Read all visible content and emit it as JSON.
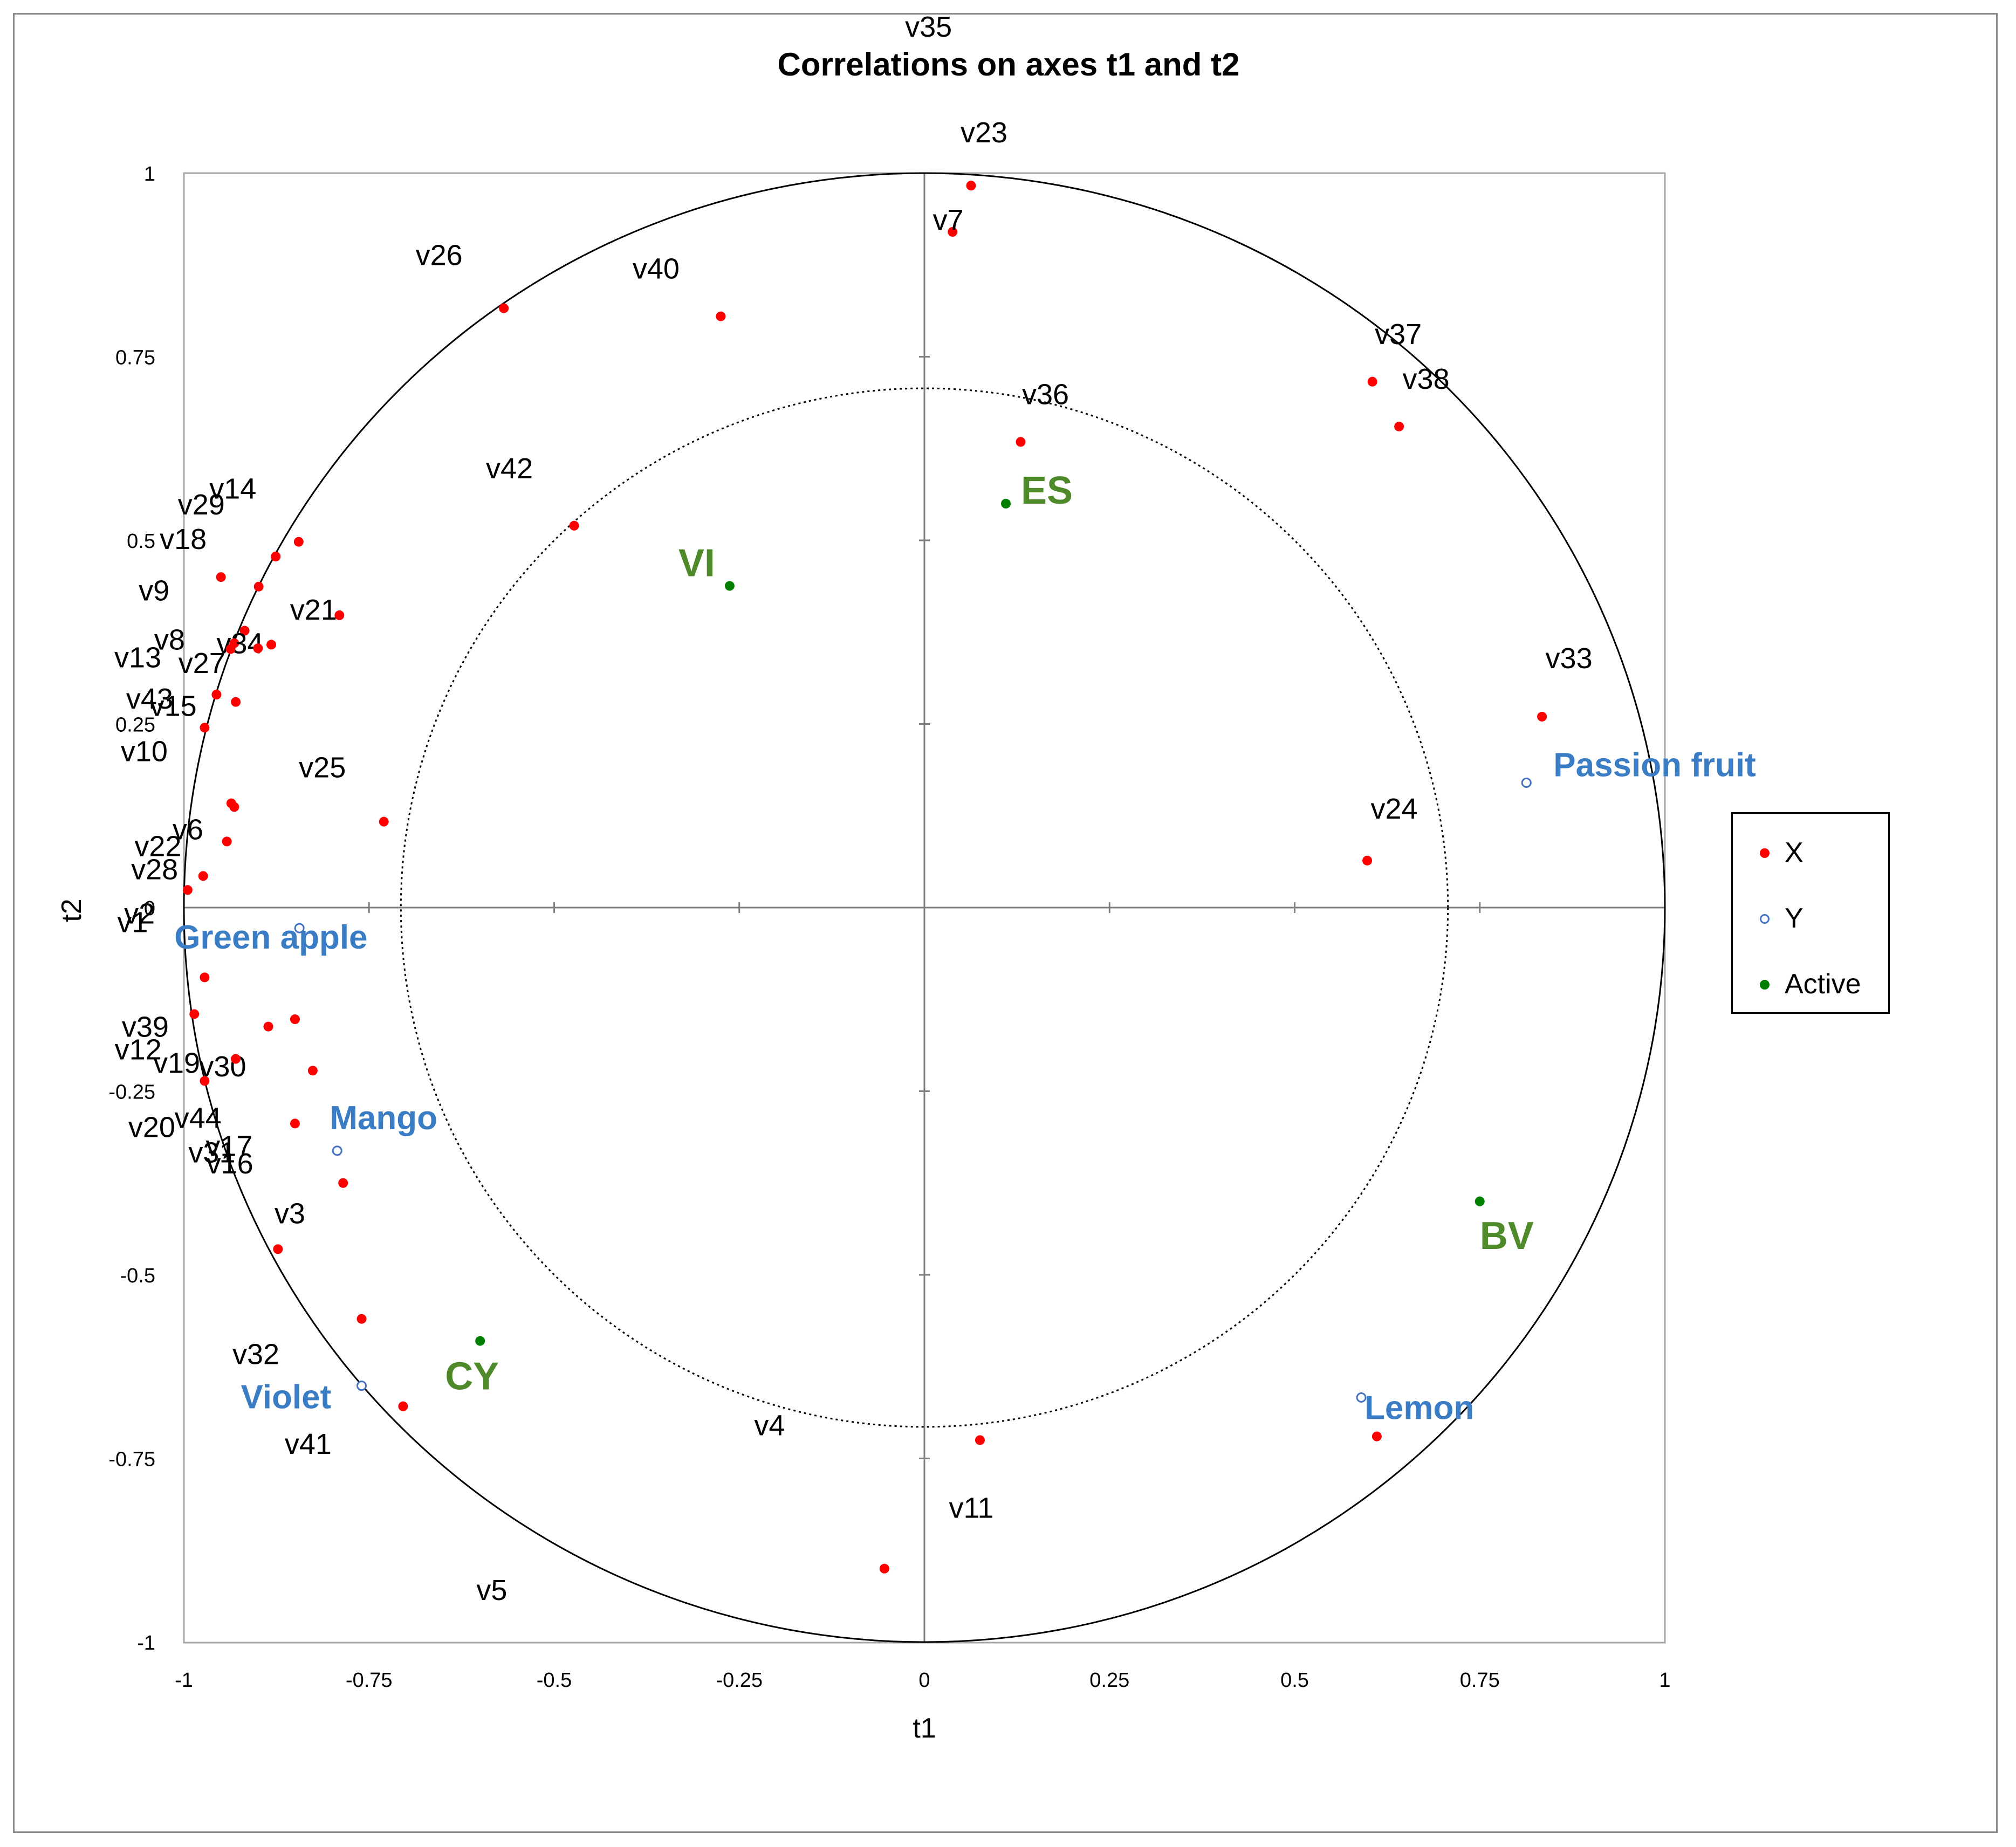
{
  "chart_data": {
    "type": "scatter",
    "title": "Correlations on axes t1 and t2",
    "xlabel": "t1",
    "ylabel": "t2",
    "xlim": [
      -1,
      1
    ],
    "ylim": [
      -1,
      1
    ],
    "x_ticks": [
      "-1",
      "-0.75",
      "-0.5",
      "-0.25",
      "0",
      "0.25",
      "0.5",
      "0.75",
      "1"
    ],
    "y_ticks": [
      "-1",
      "-0.75",
      "-0.5",
      "-0.25",
      "0",
      "0.25",
      "0.5",
      "0.75",
      "1"
    ],
    "circles": [
      {
        "radius": 1,
        "style": "solid"
      },
      {
        "radius": 0.707,
        "style": "dotted"
      }
    ],
    "legend": [
      "X",
      "Y",
      "Active"
    ],
    "colors": {
      "X": "#ff0000",
      "Y": "#4472c4",
      "Active": "#008000"
    },
    "series": [
      {
        "name": "X",
        "points": [
          {
            "label": "v23",
            "x": 0.063,
            "y": 0.983
          },
          {
            "label": "v7",
            "x": 0.038,
            "y": 0.92
          },
          {
            "label": "v26",
            "x": -0.568,
            "y": 0.816
          },
          {
            "label": "v40",
            "x": -0.275,
            "y": 0.805
          },
          {
            "label": "v37",
            "x": 0.605,
            "y": 0.716
          },
          {
            "label": "v38",
            "x": 0.641,
            "y": 0.655
          },
          {
            "label": "v36",
            "x": 0.13,
            "y": 0.634
          },
          {
            "label": "v42",
            "x": -0.473,
            "y": 0.52
          },
          {
            "label": "v14",
            "x": -0.845,
            "y": 0.498
          },
          {
            "label": "v29",
            "x": -0.876,
            "y": 0.478
          },
          {
            "label": "v18",
            "x": -0.899,
            "y": 0.437
          },
          {
            "label": "v21",
            "x": -0.79,
            "y": 0.398
          },
          {
            "label": "v9",
            "x": -0.918,
            "y": 0.377
          },
          {
            "label": "v8",
            "x": -0.932,
            "y": 0.36
          },
          {
            "label": "v34",
            "x": -0.882,
            "y": 0.358
          },
          {
            "label": "v13",
            "x": -0.937,
            "y": 0.352
          },
          {
            "label": "v27",
            "x": -0.9,
            "y": 0.353
          },
          {
            "label": "v43",
            "x": -0.956,
            "y": 0.29
          },
          {
            "label": "v15",
            "x": -0.93,
            "y": 0.28
          },
          {
            "label": "v10",
            "x": -0.972,
            "y": 0.245
          },
          {
            "label": "v22",
            "x": -0.936,
            "y": 0.142
          },
          {
            "label": "v33",
            "x": 0.834,
            "y": 0.26
          },
          {
            "label": "v6",
            "x": -0.932,
            "y": 0.137
          },
          {
            "label": "v25",
            "x": -0.73,
            "y": 0.117
          },
          {
            "label": "v28",
            "x": -0.942,
            "y": 0.09
          },
          {
            "label": "v24",
            "x": 0.598,
            "y": 0.064
          },
          {
            "label": "v2",
            "x": -0.974,
            "y": 0.043
          },
          {
            "label": "v1",
            "x": -0.995,
            "y": 0.024
          },
          {
            "label": "v39",
            "x": -0.972,
            "y": -0.095
          },
          {
            "label": "v12",
            "x": -0.986,
            "y": -0.145
          },
          {
            "label": "v19",
            "x": -0.886,
            "y": -0.162
          },
          {
            "label": "v30",
            "x": -0.85,
            "y": -0.152
          },
          {
            "label": "v44",
            "x": -0.93,
            "y": -0.206
          },
          {
            "label": "v20",
            "x": -0.972,
            "y": -0.236
          },
          {
            "label": "v17",
            "x": -0.826,
            "y": -0.222
          },
          {
            "label": "v31",
            "x": -0.85,
            "y": -0.294
          },
          {
            "label": "v16",
            "x": -0.785,
            "y": -0.375
          },
          {
            "label": "v3",
            "x": -0.873,
            "y": -0.465
          },
          {
            "label": "v32",
            "x": -0.76,
            "y": -0.56
          },
          {
            "label": "v41",
            "x": -0.704,
            "y": -0.679
          },
          {
            "label": "v11",
            "x": 0.075,
            "y": -0.725
          },
          {
            "label": "v4",
            "x": 0.611,
            "y": -0.72
          },
          {
            "label": "v5",
            "x": -0.054,
            "y": -0.9
          },
          {
            "label": "v35",
            "x": -0.95,
            "y": 0.45
          }
        ]
      },
      {
        "name": "Y",
        "points": [
          {
            "label": "Passion fruit",
            "x": 0.813,
            "y": 0.17
          },
          {
            "label": "Green apple",
            "x": -0.844,
            "y": -0.028
          },
          {
            "label": "Mango",
            "x": -0.793,
            "y": -0.331
          },
          {
            "label": "Violet",
            "x": -0.76,
            "y": -0.651
          },
          {
            "label": "Lemon",
            "x": 0.59,
            "y": -0.667
          }
        ]
      },
      {
        "name": "Active",
        "points": [
          {
            "label": "ES",
            "x": 0.11,
            "y": 0.55
          },
          {
            "label": "VI",
            "x": -0.263,
            "y": 0.438
          },
          {
            "label": "BV",
            "x": 0.75,
            "y": -0.4
          },
          {
            "label": "CY",
            "x": -0.6,
            "y": -0.59
          }
        ]
      }
    ]
  }
}
